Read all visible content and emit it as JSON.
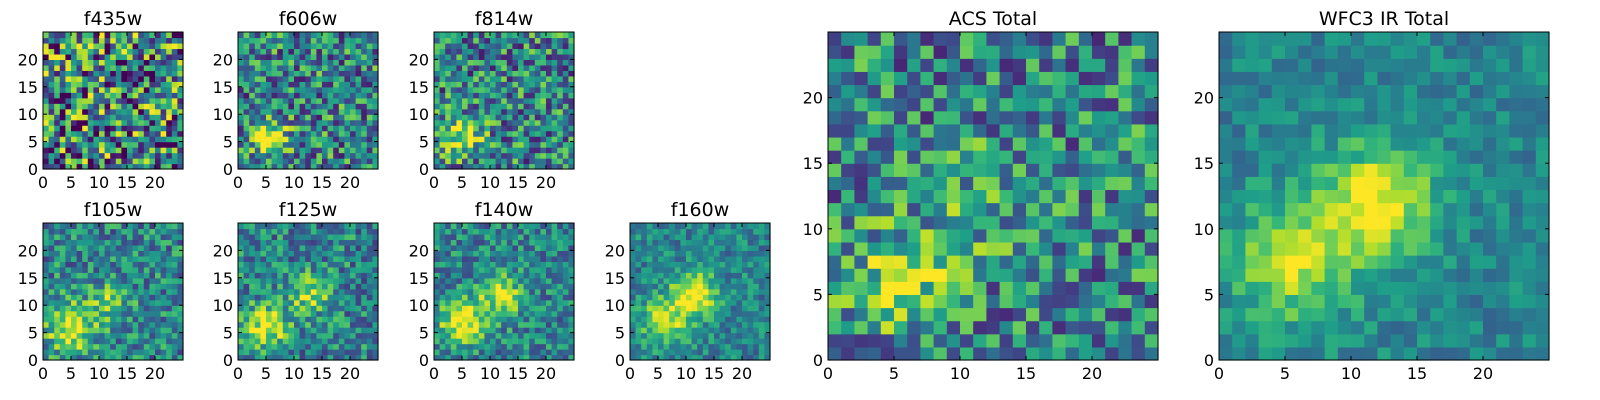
{
  "chart_data": [
    {
      "type": "heatmap",
      "title": "f435w",
      "xlim": [
        0,
        25
      ],
      "ylim": [
        0,
        25
      ],
      "xticks": [
        0,
        5,
        10,
        15,
        20
      ],
      "yticks": [
        0,
        5,
        10,
        15,
        20
      ],
      "grid": false,
      "colormap": "viridis",
      "sources": [],
      "noise": 0.55,
      "seed": 11
    },
    {
      "type": "heatmap",
      "title": "f606w",
      "xlim": [
        0,
        25
      ],
      "ylim": [
        0,
        25
      ],
      "xticks": [
        0,
        5,
        10,
        15,
        20
      ],
      "yticks": [
        0,
        5,
        10,
        15,
        20
      ],
      "grid": false,
      "colormap": "viridis",
      "sources": [
        {
          "x": 5.5,
          "y": 6,
          "amp": 0.55,
          "sigma": 2.2
        }
      ],
      "noise": 0.38,
      "seed": 23
    },
    {
      "type": "heatmap",
      "title": "f814w",
      "xlim": [
        0,
        25
      ],
      "ylim": [
        0,
        25
      ],
      "xticks": [
        0,
        5,
        10,
        15,
        20
      ],
      "yticks": [
        0,
        5,
        10,
        15,
        20
      ],
      "grid": false,
      "colormap": "viridis",
      "sources": [
        {
          "x": 5,
          "y": 6,
          "amp": 0.5,
          "sigma": 2.4
        }
      ],
      "noise": 0.38,
      "seed": 37
    },
    {
      "type": "heatmap",
      "title": "f105w",
      "xlim": [
        0,
        25
      ],
      "ylim": [
        0,
        25
      ],
      "xticks": [
        0,
        5,
        10,
        15,
        20
      ],
      "yticks": [
        0,
        5,
        10,
        15,
        20
      ],
      "grid": false,
      "colormap": "viridis",
      "sources": [
        {
          "x": 5,
          "y": 6,
          "amp": 0.55,
          "sigma": 3
        },
        {
          "x": 12,
          "y": 11,
          "amp": 0.3,
          "sigma": 2.5
        }
      ],
      "noise": 0.28,
      "seed": 41
    },
    {
      "type": "heatmap",
      "title": "f125w",
      "xlim": [
        0,
        25
      ],
      "ylim": [
        0,
        25
      ],
      "xticks": [
        0,
        5,
        10,
        15,
        20
      ],
      "yticks": [
        0,
        5,
        10,
        15,
        20
      ],
      "grid": false,
      "colormap": "viridis",
      "sources": [
        {
          "x": 5,
          "y": 6,
          "amp": 0.5,
          "sigma": 2.8
        },
        {
          "x": 13,
          "y": 12,
          "amp": 0.4,
          "sigma": 2.5
        }
      ],
      "noise": 0.28,
      "seed": 53
    },
    {
      "type": "heatmap",
      "title": "f140w",
      "xlim": [
        0,
        25
      ],
      "ylim": [
        0,
        25
      ],
      "xticks": [
        0,
        5,
        10,
        15,
        20
      ],
      "yticks": [
        0,
        5,
        10,
        15,
        20
      ],
      "grid": false,
      "colormap": "viridis",
      "sources": [
        {
          "x": 5,
          "y": 7,
          "amp": 0.5,
          "sigma": 3
        },
        {
          "x": 12,
          "y": 12,
          "amp": 0.5,
          "sigma": 2.6
        }
      ],
      "noise": 0.25,
      "seed": 67
    },
    {
      "type": "heatmap",
      "title": "f160w",
      "xlim": [
        0,
        25
      ],
      "ylim": [
        0,
        25
      ],
      "xticks": [
        0,
        5,
        10,
        15,
        20
      ],
      "yticks": [
        0,
        5,
        10,
        15,
        20
      ],
      "grid": false,
      "colormap": "viridis",
      "sources": [
        {
          "x": 6,
          "y": 7,
          "amp": 0.45,
          "sigma": 3
        },
        {
          "x": 11.5,
          "y": 12,
          "amp": 0.6,
          "sigma": 2.8
        }
      ],
      "noise": 0.2,
      "seed": 79
    },
    {
      "type": "heatmap",
      "title": "ACS Total",
      "xlim": [
        0,
        25
      ],
      "ylim": [
        0,
        25
      ],
      "xticks": [
        0,
        5,
        10,
        15,
        20
      ],
      "yticks": [
        0,
        5,
        10,
        15,
        20
      ],
      "grid": false,
      "colormap": "viridis",
      "sources": [
        {
          "x": 5.5,
          "y": 6,
          "amp": 0.45,
          "sigma": 2.6
        },
        {
          "x": 11,
          "y": 12,
          "amp": 0.15,
          "sigma": 3
        }
      ],
      "noise": 0.35,
      "seed": 97
    },
    {
      "type": "heatmap",
      "title": "WFC3 IR Total",
      "xlim": [
        0,
        25
      ],
      "ylim": [
        0,
        25
      ],
      "xticks": [
        0,
        5,
        10,
        15,
        20
      ],
      "yticks": [
        0,
        5,
        10,
        15,
        20
      ],
      "grid": false,
      "colormap": "viridis",
      "sources": [
        {
          "x": 5.5,
          "y": 7.5,
          "amp": 0.45,
          "sigma": 3.2
        },
        {
          "x": 12,
          "y": 12,
          "amp": 0.55,
          "sigma": 3
        }
      ],
      "noise": 0.14,
      "seed": 113
    }
  ]
}
